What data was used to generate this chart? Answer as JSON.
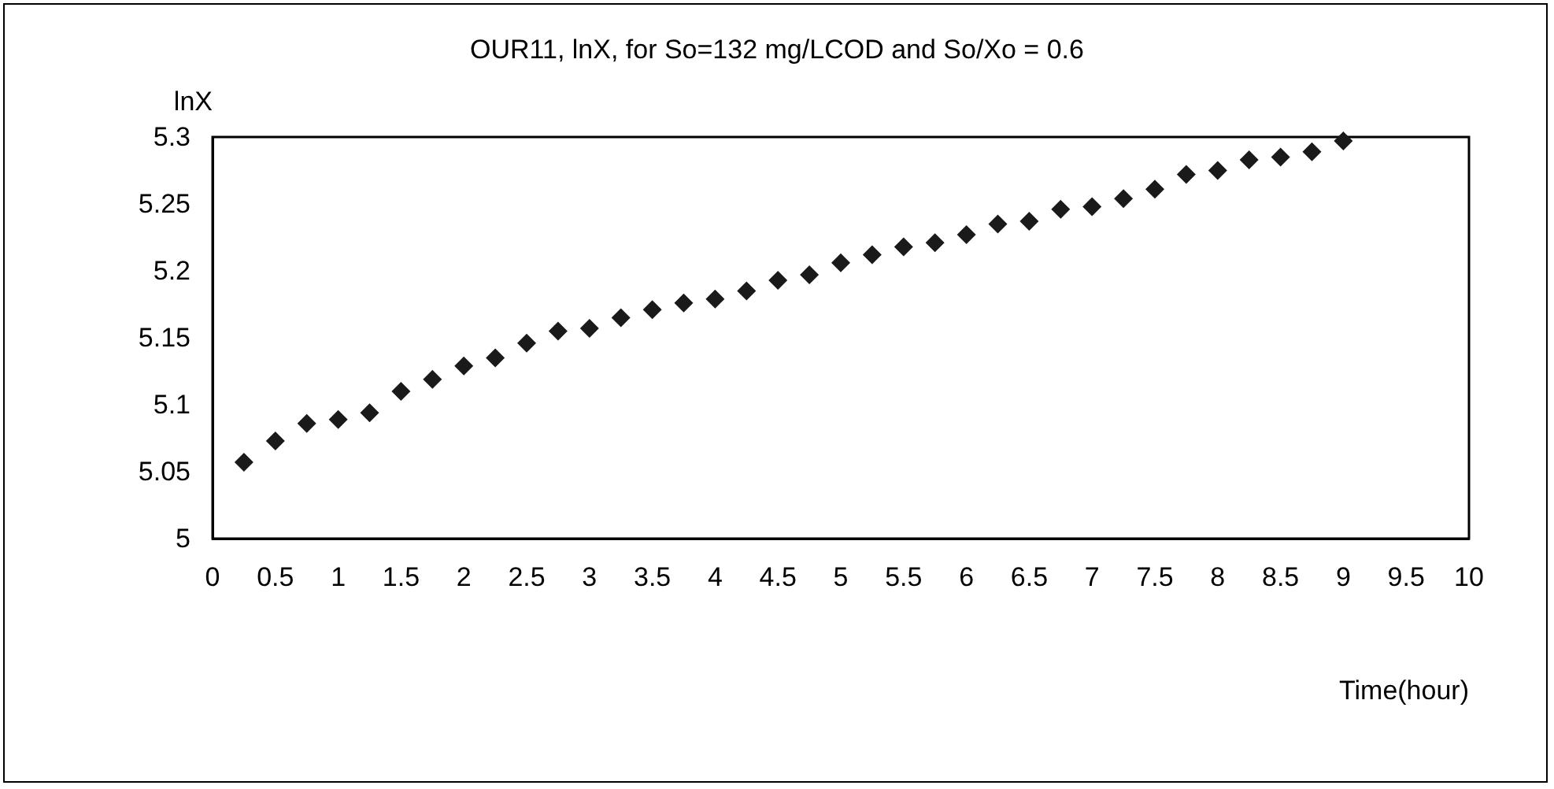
{
  "chart_data": {
    "type": "scatter",
    "title": "OUR11, lnX, for So=132 mg/LCOD and So/Xo = 0.6",
    "xlabel": "Time(hour)",
    "ylabel": "lnX",
    "x": [
      0.25,
      0.5,
      0.75,
      1,
      1.25,
      1.5,
      1.75,
      2,
      2.25,
      2.5,
      2.75,
      3,
      3.25,
      3.5,
      3.75,
      4,
      4.25,
      4.5,
      4.75,
      5,
      5.25,
      5.5,
      5.75,
      6,
      6.25,
      6.5,
      6.75,
      7,
      7.25,
      7.5,
      7.75,
      8,
      8.25,
      8.5,
      8.75,
      9
    ],
    "series": [
      {
        "color": "#1a1a1a",
        "values": [
          5.057,
          5.073,
          5.086,
          5.089,
          5.094,
          5.11,
          5.119,
          5.129,
          5.135,
          5.146,
          5.155,
          5.157,
          5.165,
          5.171,
          5.176,
          5.179,
          5.185,
          5.193,
          5.197,
          5.206,
          5.212,
          5.218,
          5.221,
          5.227,
          5.235,
          5.237,
          5.246,
          5.248,
          5.254,
          5.261,
          5.272,
          5.275,
          5.283,
          5.285,
          5.289,
          5.297
        ]
      }
    ],
    "xlim": [
      0,
      10
    ],
    "xticks": [
      0,
      0.5,
      1,
      1.5,
      2,
      2.5,
      3,
      3.5,
      4,
      4.5,
      5,
      5.5,
      6,
      6.5,
      7,
      7.5,
      8,
      8.5,
      9,
      9.5,
      10
    ],
    "ylim": [
      5,
      5.3
    ],
    "yticks": [
      5,
      5.05,
      5.1,
      5.15,
      5.2,
      5.25,
      5.3
    ],
    "grid": false,
    "marker": "diamond"
  }
}
